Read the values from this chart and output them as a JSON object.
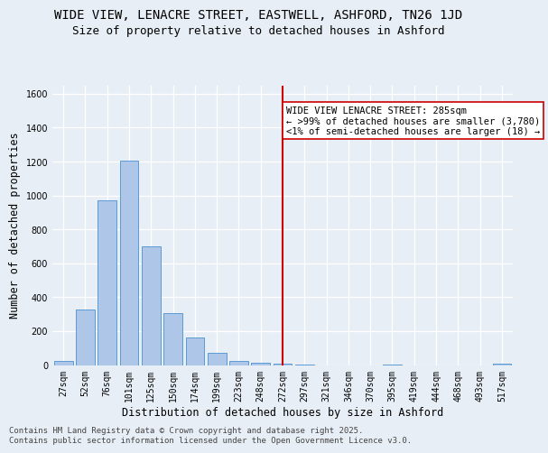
{
  "title1": "WIDE VIEW, LENACRE STREET, EASTWELL, ASHFORD, TN26 1JD",
  "title2": "Size of property relative to detached houses in Ashford",
  "xlabel": "Distribution of detached houses by size in Ashford",
  "ylabel": "Number of detached properties",
  "categories": [
    "27sqm",
    "52sqm",
    "76sqm",
    "101sqm",
    "125sqm",
    "150sqm",
    "174sqm",
    "199sqm",
    "223sqm",
    "248sqm",
    "272sqm",
    "297sqm",
    "321sqm",
    "346sqm",
    "370sqm",
    "395sqm",
    "419sqm",
    "444sqm",
    "468sqm",
    "493sqm",
    "517sqm"
  ],
  "values": [
    25,
    325,
    970,
    1205,
    700,
    305,
    160,
    70,
    25,
    15,
    10,
    5,
    0,
    0,
    0,
    5,
    0,
    0,
    0,
    0,
    10
  ],
  "bar_color": "#aec6e8",
  "bar_edge_color": "#5b9bd5",
  "background_color": "#e8eef5",
  "vline_x_index": 10,
  "vline_color": "#cc0000",
  "annotation_text": "WIDE VIEW LENACRE STREET: 285sqm\n← >99% of detached houses are smaller (3,780)\n<1% of semi-detached houses are larger (18) →",
  "annotation_box_color": "#ffffff",
  "annotation_box_edge": "#cc0000",
  "ylim": [
    0,
    1650
  ],
  "yticks": [
    0,
    200,
    400,
    600,
    800,
    1000,
    1200,
    1400,
    1600
  ],
  "footer": "Contains HM Land Registry data © Crown copyright and database right 2025.\nContains public sector information licensed under the Open Government Licence v3.0.",
  "title1_fontsize": 10,
  "title2_fontsize": 9,
  "xlabel_fontsize": 8.5,
  "ylabel_fontsize": 8.5,
  "tick_fontsize": 7,
  "footer_fontsize": 6.5,
  "ann_fontsize": 7.5
}
